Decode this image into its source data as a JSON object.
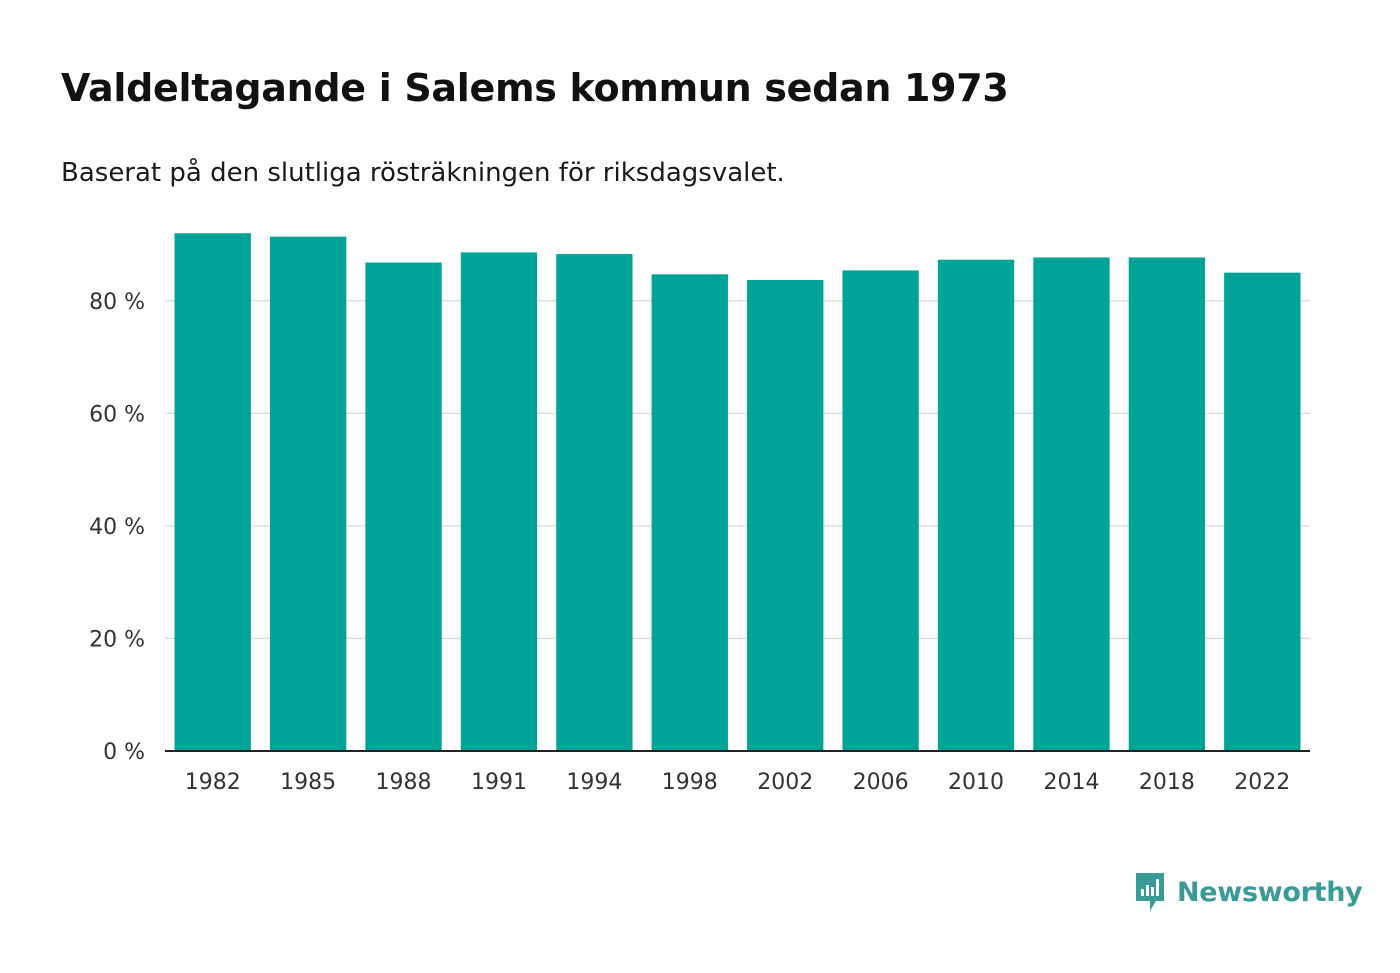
{
  "header": {
    "title": "Valdeltagande i Salems kommun sedan 1973",
    "subtitle": "Baserat på den slutliga rösträkningen för riksdagsvalet."
  },
  "brand": {
    "name": "Newsworthy",
    "icon": "newsworthy-logo-icon",
    "color": "#3a9a95"
  },
  "colors": {
    "bar": "#00a398",
    "grid": "#d9d9d9",
    "axis": "#222222"
  },
  "chart_data": {
    "type": "bar",
    "title": "Valdeltagande i Salems kommun sedan 1973",
    "subtitle": "Baserat på den slutliga rösträkningen för riksdagsvalet.",
    "xlabel": "",
    "ylabel": "",
    "categories": [
      "1982",
      "1985",
      "1988",
      "1991",
      "1994",
      "1998",
      "2002",
      "2006",
      "2010",
      "2014",
      "2018",
      "2022"
    ],
    "values": [
      92.0,
      91.4,
      86.8,
      88.6,
      88.3,
      84.7,
      83.7,
      85.4,
      87.3,
      87.7,
      87.7,
      85.0
    ],
    "ylim": [
      0,
      94
    ],
    "yticks": [
      0,
      20,
      40,
      60,
      80
    ],
    "ytick_labels": [
      "0 %",
      "20 %",
      "40 %",
      "60 %",
      "80 %"
    ],
    "grid": true,
    "unit": "%"
  }
}
